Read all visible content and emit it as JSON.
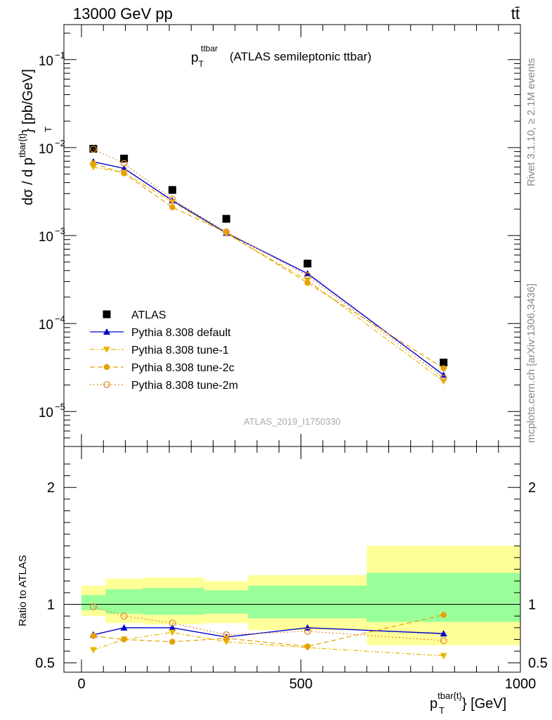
{
  "header": {
    "left": "13000 GeV pp",
    "right": "tt̄"
  },
  "side_labels": {
    "rivet": "Rivet 3.1.10, ≥ 2.1M events",
    "mcplots": "mcplots.cern.ch [arXiv:1306.3436]"
  },
  "chart_data": [
    {
      "type": "scatter",
      "title_main": "p",
      "title_sub": "T",
      "title_sup": "ttbar",
      "title_rest": "(ATLAS semileptonic ttbar)",
      "ylabel_main": "dσ / d p",
      "ylabel_sup": "tbar{t}",
      "ylabel_sub": "T",
      "ylabel_rest": "} [pb/GeV]",
      "watermark": "ATLAS_2019_I1750330",
      "xlim": [
        -40,
        1000
      ],
      "ylim": [
        4e-06,
        0.25
      ],
      "yscale": "log",
      "ytick_labels": [
        {
          "value": 0.1,
          "base": "10",
          "exp": "−1"
        },
        {
          "value": 0.01,
          "base": "10",
          "exp": "−2"
        },
        {
          "value": 0.001,
          "base": "10",
          "exp": "−3"
        },
        {
          "value": 0.0001,
          "base": "10",
          "exp": "−4"
        },
        {
          "value": 1e-05,
          "base": "10",
          "exp": "−5"
        }
      ],
      "legend_position": "lower-left",
      "series": [
        {
          "name": "ATLAS",
          "color": "#000000",
          "marker": "square",
          "line": "none",
          "x": [
            27,
            97,
            207,
            330,
            515,
            825
          ],
          "y": [
            0.0097,
            0.0075,
            0.0033,
            0.00155,
            0.00048,
            3.6e-05
          ]
        },
        {
          "name": "Pythia 8.308 default",
          "color": "#0000cc",
          "marker": "triangle-up",
          "line": "solid",
          "x": [
            27,
            97,
            207,
            330,
            515,
            825
          ],
          "y": [
            0.0069,
            0.0058,
            0.0025,
            0.00107,
            0.00037,
            2.6e-05
          ]
        },
        {
          "name": "Pythia 8.308 tune-1",
          "color": "#e6b800",
          "marker": "triangle-down",
          "line": "dashdot",
          "x": [
            27,
            97,
            207,
            330,
            515,
            825
          ],
          "y": [
            0.006,
            0.0052,
            0.0024,
            0.00105,
            0.00031,
            2.2e-05
          ]
        },
        {
          "name": "Pythia 8.308 tune-2c",
          "color": "#e6a000",
          "marker": "circle",
          "line": "dashed",
          "x": [
            27,
            97,
            207,
            330,
            515,
            825
          ],
          "y": [
            0.0066,
            0.0051,
            0.0021,
            0.00108,
            0.00029,
            3.1e-05
          ]
        },
        {
          "name": "Pythia 8.308 tune-2m",
          "color": "#e08c30",
          "marker": "circle-open",
          "line": "dotted",
          "x": [
            27,
            97,
            207,
            330,
            515,
            825
          ],
          "y": [
            0.0096,
            0.0066,
            0.0026,
            0.0011,
            0.00035,
            2.4e-05
          ]
        }
      ]
    },
    {
      "type": "scatter",
      "ylabel": "Ratio to ATLAS",
      "xlabel_main": "p",
      "xlabel_sub": "T",
      "xlabel_sup": "tbar{t}",
      "xlabel_rest": "} [GeV]",
      "xlim": [
        -40,
        1000
      ],
      "ylim": [
        0.42,
        2.35
      ],
      "xticks": [
        0,
        500,
        1000
      ],
      "yticks": [
        0.5,
        1,
        2
      ],
      "bands": [
        {
          "x0": 0,
          "x1": 55,
          "yellow": [
            0.9,
            1.16
          ],
          "green": [
            0.95,
            1.08
          ]
        },
        {
          "x0": 55,
          "x1": 140,
          "yellow": [
            0.84,
            1.22
          ],
          "green": [
            0.92,
            1.13
          ]
        },
        {
          "x0": 140,
          "x1": 280,
          "yellow": [
            0.83,
            1.23
          ],
          "green": [
            0.91,
            1.14
          ]
        },
        {
          "x0": 280,
          "x1": 380,
          "yellow": [
            0.84,
            1.2
          ],
          "green": [
            0.92,
            1.12
          ]
        },
        {
          "x0": 380,
          "x1": 650,
          "yellow": [
            0.78,
            1.25
          ],
          "green": [
            0.88,
            1.16
          ]
        },
        {
          "x0": 650,
          "x1": 1000,
          "yellow": [
            0.65,
            1.5
          ],
          "green": [
            0.85,
            1.27
          ]
        }
      ],
      "series": [
        {
          "name": "Pythia 8.308 default",
          "color": "#0000cc",
          "marker": "triangle-up",
          "line": "solid",
          "x": [
            27,
            97,
            207,
            330,
            515,
            825
          ],
          "y": [
            0.74,
            0.8,
            0.8,
            0.72,
            0.8,
            0.75
          ]
        },
        {
          "name": "Pythia 8.308 tune-1",
          "color": "#e6b800",
          "marker": "triangle-down",
          "line": "dashdot",
          "x": [
            27,
            97,
            207,
            330,
            515,
            825
          ],
          "y": [
            0.61,
            0.7,
            0.76,
            0.68,
            0.63,
            0.56
          ]
        },
        {
          "name": "Pythia 8.308 tune-2c",
          "color": "#e6a000",
          "marker": "circle",
          "line": "dashed",
          "x": [
            27,
            97,
            207,
            330,
            515,
            825
          ],
          "y": [
            0.73,
            0.7,
            0.68,
            0.71,
            0.64,
            0.91
          ]
        },
        {
          "name": "Pythia 8.308 tune-2m",
          "color": "#e08c30",
          "marker": "circle-open",
          "line": "dotted",
          "x": [
            27,
            97,
            207,
            330,
            515,
            825
          ],
          "y": [
            0.98,
            0.9,
            0.84,
            0.74,
            0.77,
            0.69
          ]
        }
      ]
    }
  ]
}
